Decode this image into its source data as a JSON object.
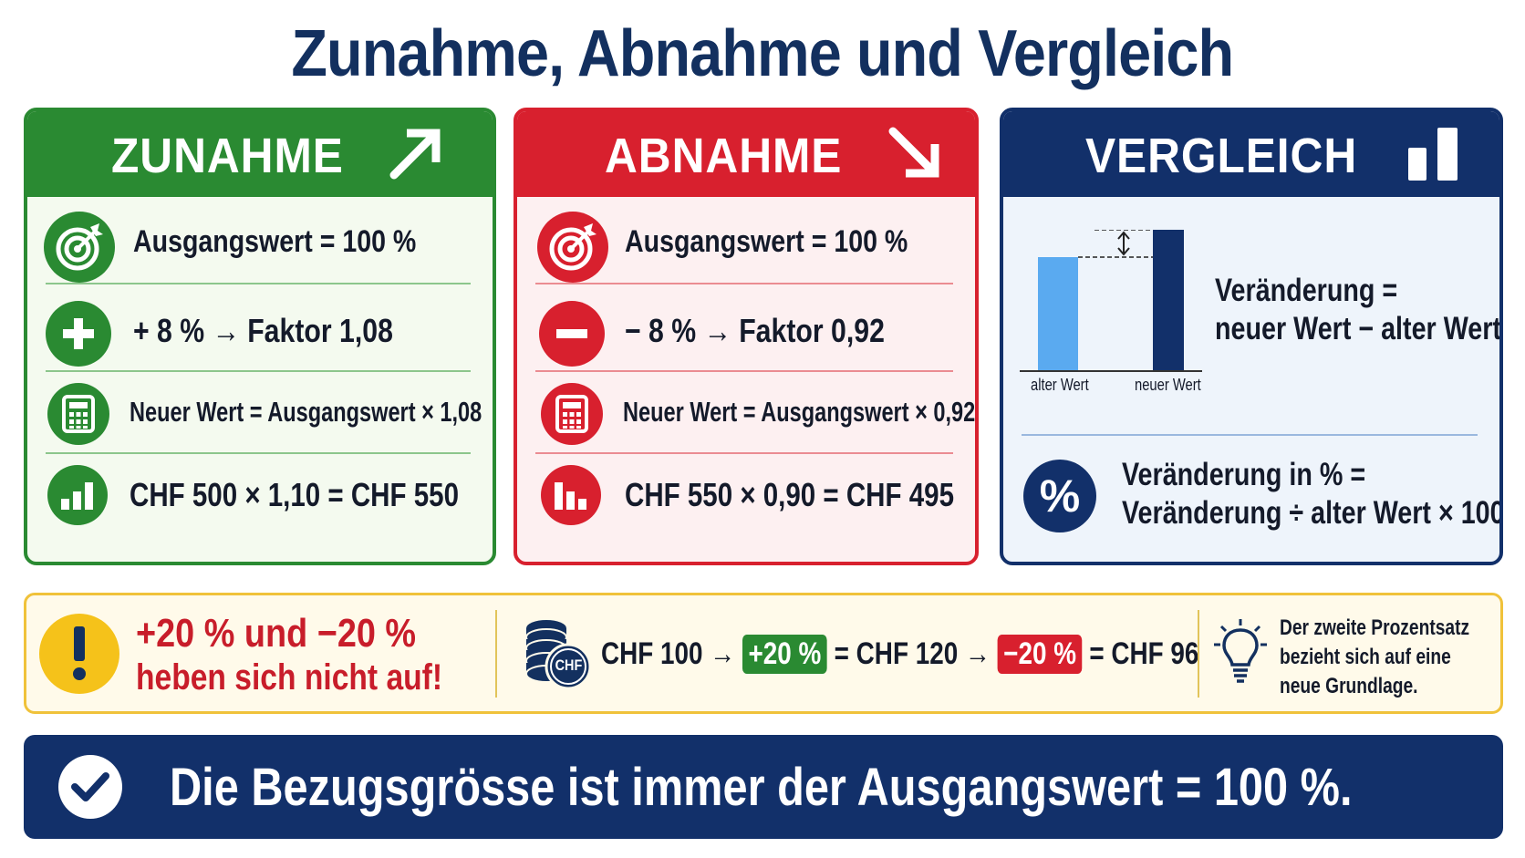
{
  "title": "Zunahme, Abnahme und Vergleich",
  "colors": {
    "green": "#2a8a32",
    "red": "#d8202e",
    "navy": "#12306a",
    "blue": "#5aaaf0",
    "yellow": "#f5c21a"
  },
  "zunahme": {
    "header": "ZUNAHME",
    "header_icon": "arrow-up-right-icon",
    "rows": [
      {
        "icon": "target-icon",
        "text": "Ausgangswert = 100 %"
      },
      {
        "icon": "plus-icon",
        "text": "+ 8 % → Faktor 1,08"
      },
      {
        "icon": "calculator-icon",
        "text": "Neuer Wert = Ausgangswert × 1,08"
      },
      {
        "icon": "bar-chart-up-icon",
        "text": "CHF 500 × 1,10 = CHF 550"
      }
    ]
  },
  "abnahme": {
    "header": "ABNAHME",
    "header_icon": "arrow-down-right-icon",
    "rows": [
      {
        "icon": "target-icon",
        "text": "Ausgangswert = 100 %"
      },
      {
        "icon": "minus-icon",
        "text": "− 8 % → Faktor 0,92"
      },
      {
        "icon": "calculator-icon",
        "text": "Neuer Wert = Ausgangswert × 0,92"
      },
      {
        "icon": "bar-chart-down-icon",
        "text": "CHF 550 × 0,90 = CHF 495"
      }
    ]
  },
  "vergleich": {
    "header": "VERGLEICH",
    "header_icon": "bar-chart-icon",
    "bar_old_label": "alter Wert",
    "bar_new_label": "neuer Wert",
    "formula1_line1": "Veränderung =",
    "formula1_line2": "neuer Wert − alter Wert",
    "formula2_line1": "Veränderung in % =",
    "formula2_line2": "Veränderung ÷ alter Wert × 100",
    "percent_icon": "%"
  },
  "warning": {
    "icon": "exclamation-icon",
    "line1": "+20 % und −20 %",
    "line2": "heben sich nicht auf!",
    "coins_label": "CHF",
    "start": "CHF 100 →",
    "chip_plus": "+20 %",
    "mid": "= CHF 120 →",
    "chip_minus": "−20 %",
    "end": "= CHF 96",
    "tip_icon": "lightbulb-icon",
    "tip_line1": "Der zweite Prozentsatz",
    "tip_line2": "bezieht sich auf eine",
    "tip_line3": "neue Grundlage."
  },
  "bottom": {
    "icon": "checkmark-icon",
    "text": "Die Bezugsgrösse ist immer der Ausgangswert = 100 %."
  }
}
